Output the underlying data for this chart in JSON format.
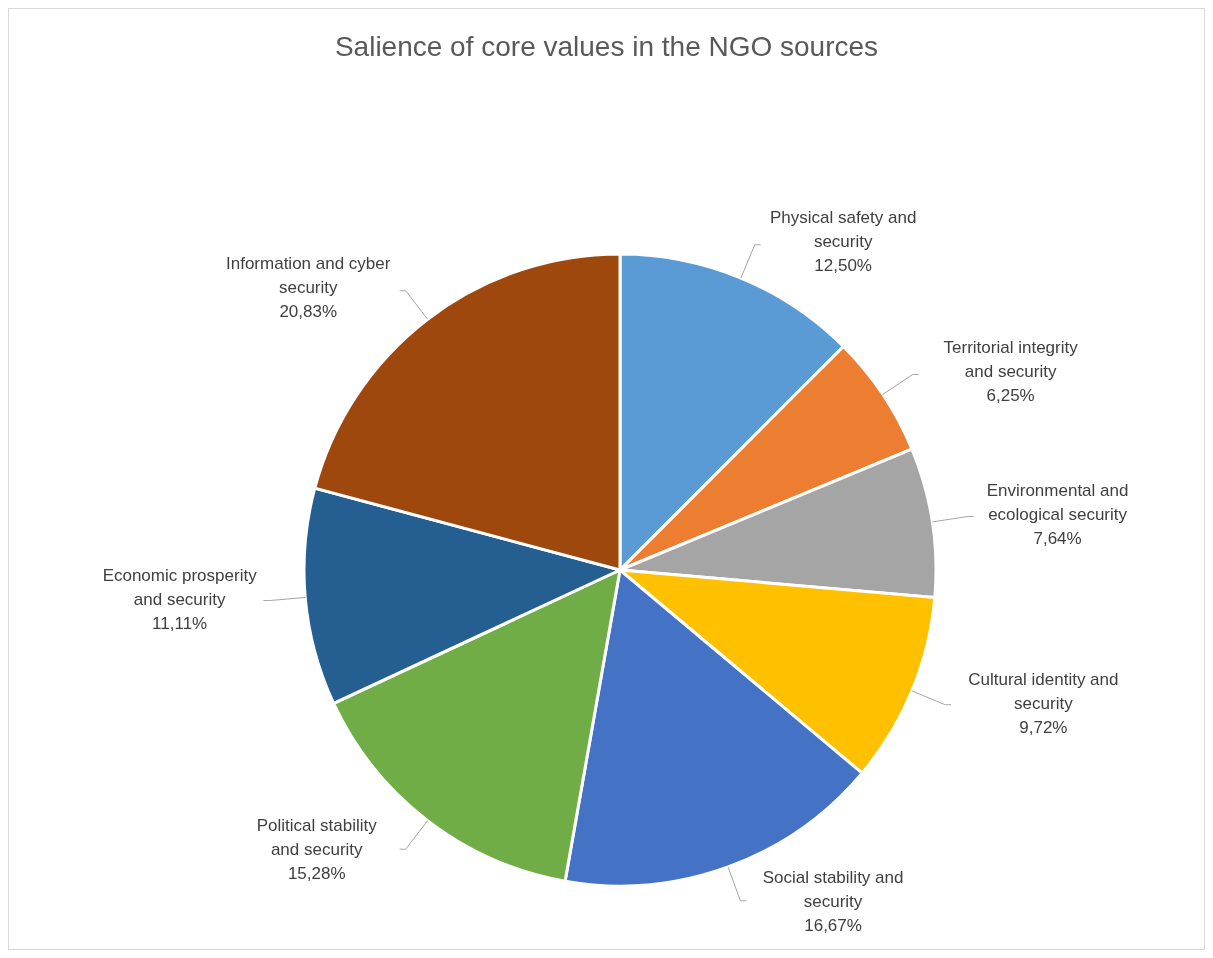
{
  "chart_data": {
    "type": "pie",
    "title": "Salience of core values in the NGO sources",
    "categories": [
      "Physical safety and security",
      "Territorial integrity and security",
      "Environmental and ecological security",
      "Cultural identity and security",
      "Social stability and security",
      "Political stability and security",
      "Economic prosperity and security",
      "Information and cyber security"
    ],
    "values": [
      12.5,
      6.25,
      7.64,
      9.72,
      16.67,
      15.28,
      11.11,
      20.83
    ],
    "value_labels": [
      "12,50%",
      "6,25%",
      "7,64%",
      "9,72%",
      "16,67%",
      "15,28%",
      "11,11%",
      "20,83%"
    ],
    "colors": [
      "#5b9bd5",
      "#ed7d31",
      "#a5a5a5",
      "#ffc000",
      "#4472c4",
      "#70ad47",
      "#255e91",
      "#9e480e"
    ],
    "legend": false
  }
}
